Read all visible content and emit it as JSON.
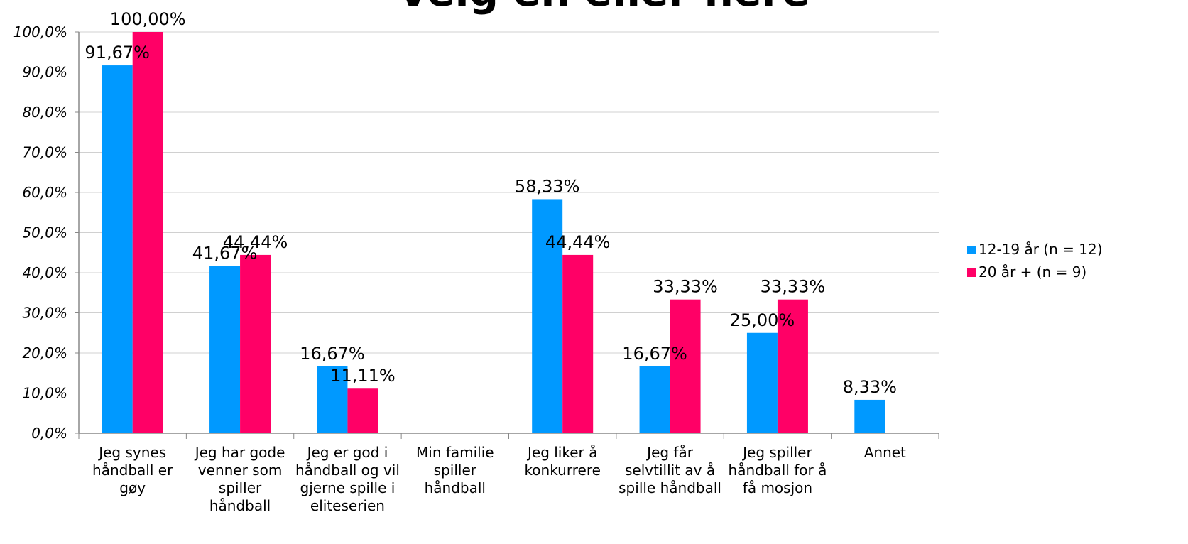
{
  "chart_data": {
    "type": "bar",
    "title": "Velg en eller flere",
    "categories": [
      [
        "Jeg synes",
        "håndball er",
        "gøy"
      ],
      [
        "Jeg har gode",
        "venner som",
        "spiller",
        "håndball"
      ],
      [
        "Jeg er god i",
        "håndball og vil",
        "gjerne spille i",
        "eliteserien"
      ],
      [
        "Min familie",
        "spiller",
        "håndball"
      ],
      [
        "Jeg liker å",
        "konkurrere"
      ],
      [
        "Jeg får",
        "selvtillit av å",
        "spille håndball"
      ],
      [
        "Jeg spiller",
        "håndball for å",
        "få mosjon"
      ],
      [
        "Annet"
      ]
    ],
    "series": [
      {
        "name": "12-19 år (n = 12)",
        "color": "#0099ff",
        "values": [
          91.67,
          41.67,
          16.67,
          0,
          58.33,
          16.67,
          25.0,
          8.33
        ],
        "labels": [
          "91,67%",
          "41,67%",
          "16,67%",
          "",
          "58,33%",
          "16,67%",
          "25,00%",
          "8,33%"
        ]
      },
      {
        "name": "20 år + (n = 9)",
        "color": "#ff0066",
        "values": [
          100.0,
          44.44,
          11.11,
          0,
          44.44,
          33.33,
          33.33,
          0
        ],
        "labels": [
          "100,00%",
          "44,44%",
          "11,11%",
          "",
          "44,44%",
          "33,33%",
          "33,33%",
          ""
        ]
      }
    ],
    "yticks": [
      "0,0%",
      "10,0%",
      "20,0%",
      "30,0%",
      "40,0%",
      "50,0%",
      "60,0%",
      "70,0%",
      "80,0%",
      "90,0%",
      "100,0%"
    ],
    "ylim": [
      0,
      100
    ],
    "grid": true,
    "legend_position": "right"
  }
}
